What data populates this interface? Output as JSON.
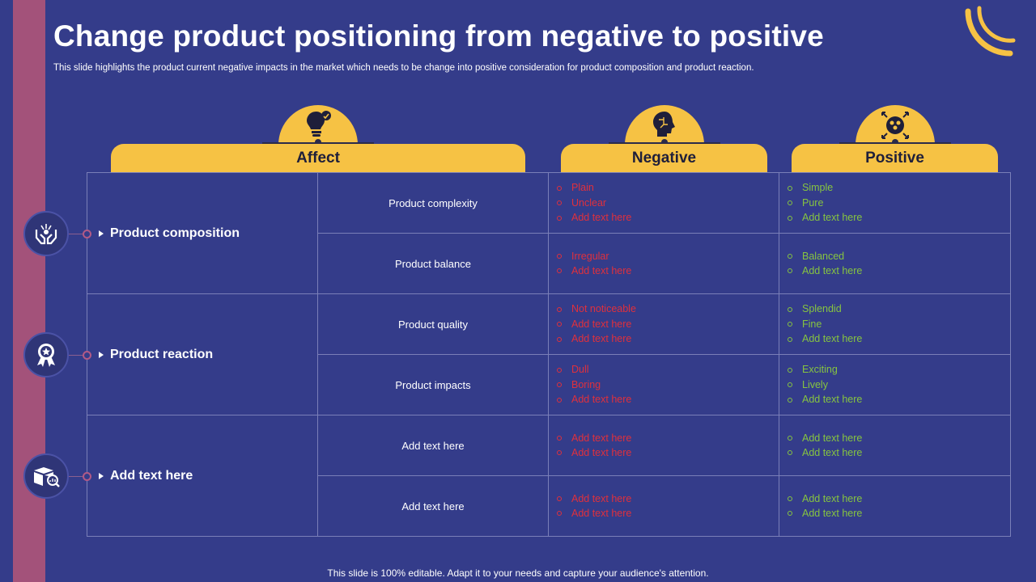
{
  "title": "Change product positioning from negative to positive",
  "subtitle": "This slide highlights the product current negative impacts in the market which needs to be change into positive consideration for product composition and product reaction.",
  "footer": "This slide is 100% editable. Adapt it to your needs and capture your audience's attention.",
  "colors": {
    "background": "#343c8a",
    "accent": "#f6c244",
    "strip": "#a3527a",
    "negative": "#e0303c",
    "positive": "#86c440"
  },
  "headers": {
    "affect": "Affect",
    "negative": "Negative",
    "positive": "Positive"
  },
  "header_icons": {
    "affect": "lightbulb-like-icon",
    "negative": "puzzle-head-icon",
    "positive": "team-arrows-icon"
  },
  "groups": [
    {
      "label": "Product composition",
      "icon": "hands-plant-icon",
      "rows": [
        {
          "affect": "Product complexity",
          "negative": [
            "Plain",
            "Unclear",
            "Add text here"
          ],
          "positive": [
            "Simple",
            "Pure",
            "Add text here"
          ]
        },
        {
          "affect": "Product balance",
          "negative": [
            "Irregular",
            "Add text here"
          ],
          "positive": [
            "Balanced",
            "Add text here"
          ]
        }
      ]
    },
    {
      "label": "Product reaction",
      "icon": "award-badge-icon",
      "rows": [
        {
          "affect": "Product quality",
          "negative": [
            "Not noticeable",
            "Add text here",
            "Add text here"
          ],
          "positive": [
            "Splendid",
            "Fine",
            "Add text here"
          ]
        },
        {
          "affect": "Product impacts",
          "negative": [
            "Dull",
            "Boring",
            "Add text here"
          ],
          "positive": [
            "Exciting",
            "Lively",
            "Add text here"
          ]
        }
      ]
    },
    {
      "label": "Add text here",
      "icon": "box-analytics-icon",
      "rows": [
        {
          "affect": "Add text here",
          "negative": [
            "Add text here",
            "Add text here"
          ],
          "positive": [
            "Add text here",
            "Add text here"
          ]
        },
        {
          "affect": "Add text here",
          "negative": [
            "Add text here",
            "Add text here"
          ],
          "positive": [
            "Add text here",
            "Add text here"
          ]
        }
      ]
    }
  ]
}
